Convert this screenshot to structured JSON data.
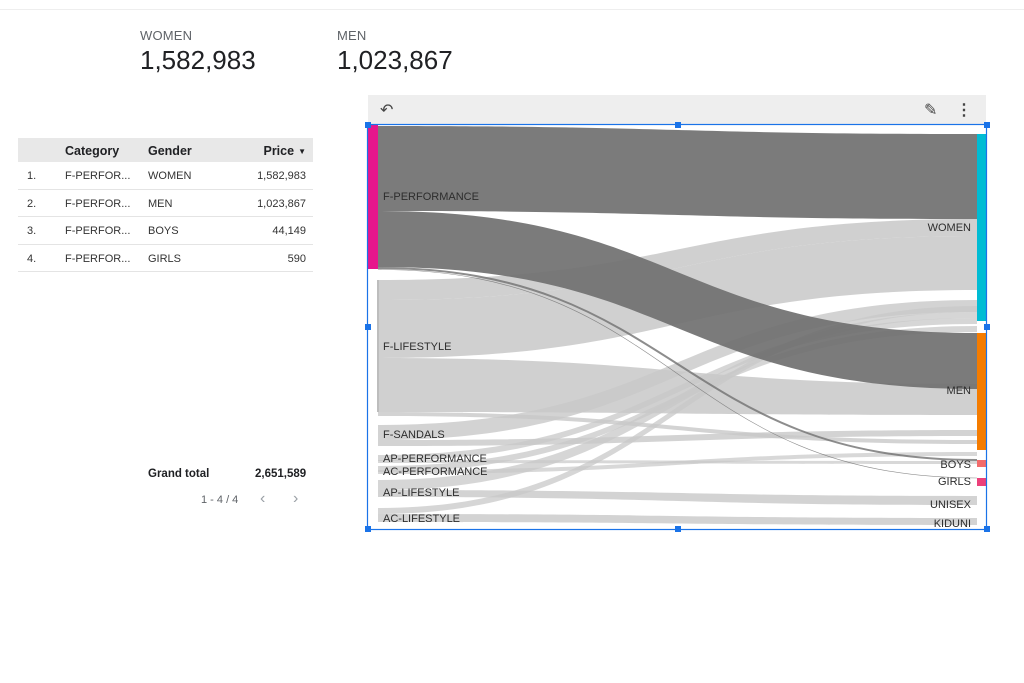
{
  "scorecards": [
    {
      "label": "WOMEN",
      "value": "1,582,983"
    },
    {
      "label": "MEN",
      "value": "1,023,867"
    }
  ],
  "table": {
    "headers": {
      "category": "Category",
      "gender": "Gender",
      "price": "Price",
      "sort_icon": "caret-down-icon"
    },
    "rows": [
      {
        "index": "1.",
        "category": "F-PERFOR...",
        "gender": "WOMEN",
        "price": "1,582,983"
      },
      {
        "index": "2.",
        "category": "F-PERFOR...",
        "gender": "MEN",
        "price": "1,023,867"
      },
      {
        "index": "3.",
        "category": "F-PERFOR...",
        "gender": "BOYS",
        "price": "44,149"
      },
      {
        "index": "4.",
        "category": "F-PERFOR...",
        "gender": "GIRLS",
        "price": "590"
      }
    ],
    "grand_total_label": "Grand total",
    "grand_total_value": "2,651,589",
    "pagination": "1 - 4 / 4",
    "prev_icon": "chevron-left-icon",
    "next_icon": "chevron-right-icon"
  },
  "toolbar": {
    "undo_icon": "undo-icon",
    "edit_icon": "pencil-icon",
    "more_icon": "more-vert-icon"
  },
  "chart_data": {
    "type": "sankey",
    "sources": [
      "F-PERFORMANCE",
      "F-LIFESTYLE",
      "F-SANDALS",
      "AP-PERFORMANCE",
      "AC-PERFORMANCE",
      "AP-LIFESTYLE",
      "AC-LIFESTYLE"
    ],
    "targets": [
      "WOMEN",
      "MEN",
      "BOYS",
      "GIRLS",
      "UNISEX",
      "KIDUNI"
    ],
    "flows": [
      {
        "source": "F-PERFORMANCE",
        "target": "WOMEN",
        "value": 1582983
      },
      {
        "source": "F-PERFORMANCE",
        "target": "MEN",
        "value": 1023867
      },
      {
        "source": "F-PERFORMANCE",
        "target": "BOYS",
        "value": 44149
      },
      {
        "source": "F-PERFORMANCE",
        "target": "GIRLS",
        "value": 590
      }
    ],
    "colors": {
      "selected_source": "#e6168c",
      "WOMEN": "#00bcd4",
      "MEN": "#f57c00",
      "BOYS": "#f26b6b",
      "GIRLS": "#ec407a",
      "highlight_flow": "#707070",
      "other_flow": "#c8c8c8",
      "selection": "#1a73e8"
    }
  }
}
